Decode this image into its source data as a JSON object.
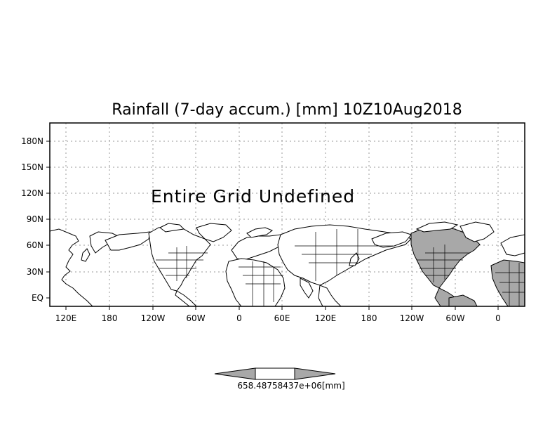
{
  "title": "Rainfall (7-day accum.) [mm] 10Z10Aug2018",
  "message": "Entire Grid Undefined",
  "axes": {
    "x_ticks": [
      "120E",
      "180",
      "120W",
      "60W",
      "0",
      "60E",
      "120E",
      "180",
      "120W",
      "60W",
      "0"
    ],
    "y_ticks": [
      "180N",
      "150N",
      "120N",
      "90N",
      "60N",
      "30N",
      "EQ"
    ]
  },
  "colorbar": {
    "label": "658.48758437e+06[mm]",
    "colors": {
      "end_arrows": "#a8a8a8",
      "center": "#ffffff"
    }
  },
  "colors": {
    "grid": "#9a9a9a",
    "shaded_land": "#a8a8a8"
  },
  "icons": [
    "colorbar-left-arrow",
    "colorbar-right-arrow"
  ]
}
